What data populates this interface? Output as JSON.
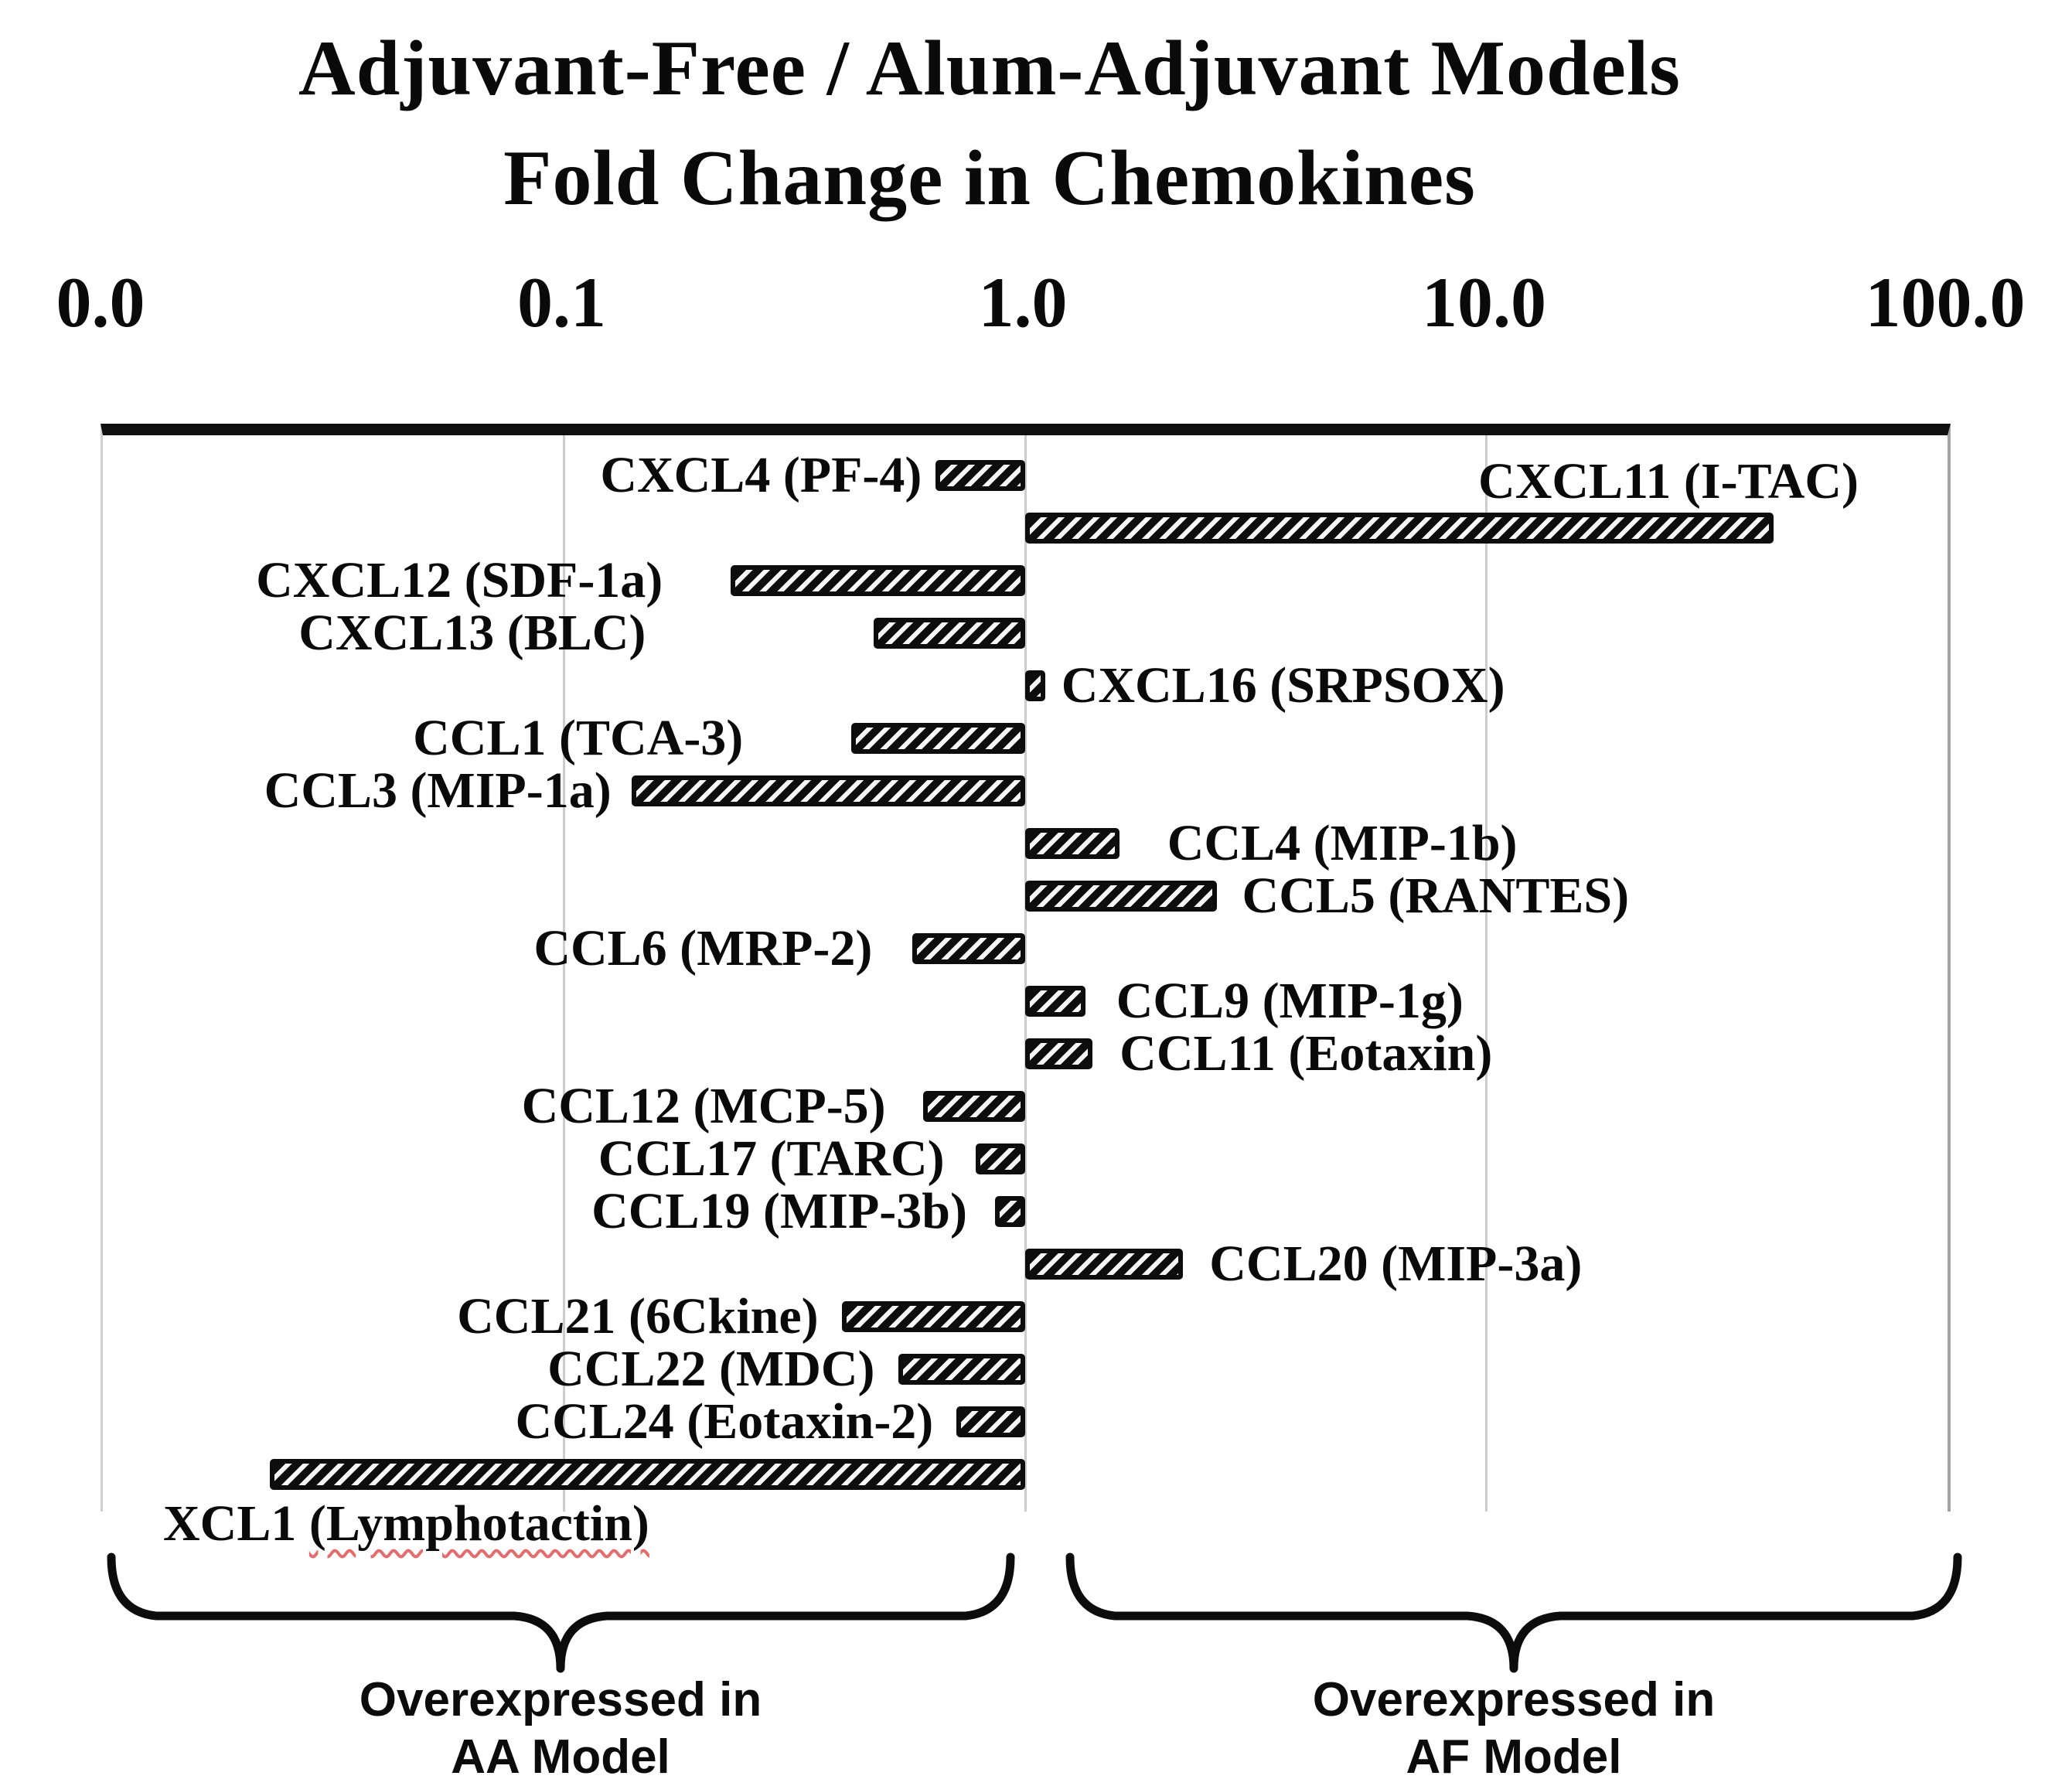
{
  "title": {
    "line1": "Adjuvant-Free / Alum-Adjuvant Models",
    "line2": "Fold Change in Chemokines"
  },
  "chart_data": {
    "type": "bar",
    "orientation": "horizontal",
    "x_scale": "log10",
    "x_domain": [
      0.01,
      100
    ],
    "baseline_value": 1.0,
    "grid": "vertical-light-gray",
    "x_ticks": [
      {
        "label": "0.0",
        "value": 0.01
      },
      {
        "label": "0.1",
        "value": 0.1
      },
      {
        "label": "1.0",
        "value": 1
      },
      {
        "label": "10.0",
        "value": 10
      },
      {
        "label": "100.0",
        "value": 100
      }
    ],
    "bars": [
      {
        "name": "CXCL4 (PF-4)",
        "value": 0.64,
        "side": "AA",
        "label_position": "left",
        "label_gap": 18
      },
      {
        "name": "CXCL11 (I-TAC)",
        "value": 42,
        "side": "AF",
        "label_position": "above",
        "label_gap": 115
      },
      {
        "name": "CXCL12 (SDF-1a)",
        "value": 0.23,
        "side": "AA",
        "label_position": "left",
        "label_gap": 88
      },
      {
        "name": "CXCL13 (BLC)",
        "value": 0.47,
        "side": "AA",
        "label_position": "left",
        "label_gap": 295
      },
      {
        "name": "CXCL16 (SRPSOX)",
        "value": 1.1,
        "side": "AF",
        "label_position": "right",
        "label_gap": 22
      },
      {
        "name": "CCL1 (TCA-3)",
        "value": 0.42,
        "side": "AA",
        "label_position": "left",
        "label_gap": 140
      },
      {
        "name": "CCL3 (MIP-1a)",
        "value": 0.14,
        "side": "AA",
        "label_position": "left",
        "label_gap": 26
      },
      {
        "name": "CCL4 (MIP-1b)",
        "value": 1.6,
        "side": "AF",
        "label_position": "right",
        "label_gap": 62
      },
      {
        "name": "CCL5 (RANTES)",
        "value": 2.6,
        "side": "AF",
        "label_position": "right",
        "label_gap": 33
      },
      {
        "name": "CCL6 (MRP-2)",
        "value": 0.57,
        "side": "AA",
        "label_position": "left",
        "label_gap": 52
      },
      {
        "name": "CCL9 (MIP-1g)",
        "value": 1.35,
        "side": "AF",
        "label_position": "right",
        "label_gap": 40
      },
      {
        "name": "CCL11 (Eotaxin)",
        "value": 1.4,
        "side": "AF",
        "label_position": "right",
        "label_gap": 35
      },
      {
        "name": "CCL12 (MCP-5)",
        "value": 0.6,
        "side": "AA",
        "label_position": "left",
        "label_gap": 48
      },
      {
        "name": "CCL17 (TARC)",
        "value": 0.78,
        "side": "AA",
        "label_position": "left",
        "label_gap": 40
      },
      {
        "name": "CCL19 (MIP-3b)",
        "value": 0.86,
        "side": "AA",
        "label_position": "left",
        "label_gap": 36
      },
      {
        "name": "CCL20 (MIP-3a)",
        "value": 2.2,
        "side": "AF",
        "label_position": "right",
        "label_gap": 34
      },
      {
        "name": "CCL21 (6Ckine)",
        "value": 0.4,
        "side": "AA",
        "label_position": "left",
        "label_gap": 30
      },
      {
        "name": "CCL22 (MDC)",
        "value": 0.53,
        "side": "AA",
        "label_position": "left",
        "label_gap": 30
      },
      {
        "name": "CCL24 (Eotaxin-2)",
        "value": 0.71,
        "side": "AA",
        "label_position": "left",
        "label_gap": 30
      },
      {
        "name": "XCL1 (Lymphotactin)",
        "value": 0.023,
        "side": "AA",
        "label_position": "below",
        "label_main": "XCL1 ",
        "underline_part": "(Lymphotactin)",
        "label_gap": 0
      }
    ],
    "annotations": [
      {
        "group": "AA",
        "line1": "Overexpressed in",
        "line2": "AA Model"
      },
      {
        "group": "AF",
        "line1": "Overexpressed in",
        "line2": "AF Model"
      }
    ]
  },
  "colors": {
    "bar": "#0d0d0d",
    "hatch": "#f7f7f7",
    "gridline": "#cccccc",
    "axis_top_rule": "#101010",
    "spellcheck_underline": "#e86a6a",
    "text": "#0a0a0a"
  }
}
